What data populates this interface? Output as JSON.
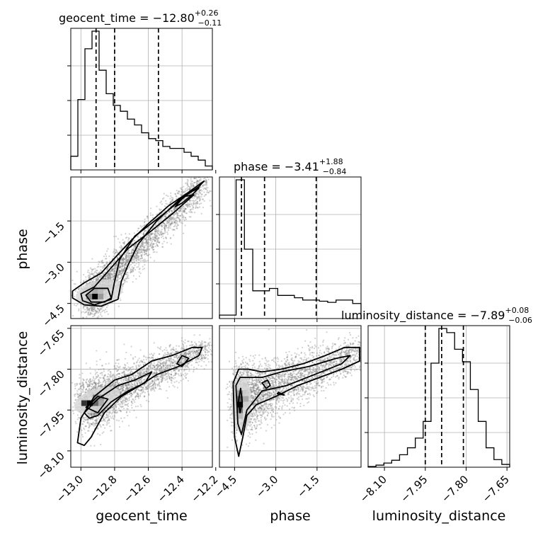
{
  "chart_data": {
    "type": "corner",
    "parameters": [
      "geocent_time",
      "phase",
      "luminosity_distance"
    ],
    "panels": {
      "geocent_time": {
        "title": {
          "prefix": "geocent_time = −12.80",
          "sup": "+0.26",
          "sub": "−0.11"
        },
        "range": [
          -13.06,
          -12.22
        ],
        "ticks": [
          -13.0,
          -12.8,
          -12.6,
          -12.4,
          -12.2
        ],
        "tick_labels": [
          "−13.0",
          "−12.8",
          "−12.6",
          "−12.4",
          "−12.2"
        ],
        "quantiles": [
          -12.91,
          -12.8,
          -12.54
        ],
        "hist": [
          0.07,
          0.36,
          0.62,
          0.71,
          0.51,
          0.39,
          0.33,
          0.3,
          0.26,
          0.23,
          0.19,
          0.16,
          0.15,
          0.12,
          0.11,
          0.11,
          0.09,
          0.07,
          0.05,
          0.02
        ]
      },
      "phase": {
        "title": {
          "prefix": "phase = −3.41",
          "sup": "+1.88",
          "sub": "−0.84"
        },
        "range": [
          -5.05,
          0.1
        ],
        "ticks": [
          -4.5,
          -3.0,
          -1.5
        ],
        "tick_labels": [
          "−4.5",
          "−3.0",
          "−1.5"
        ],
        "quantiles": [
          -4.25,
          -3.41,
          -1.53
        ],
        "hist": [
          0.015,
          0.015,
          0.6,
          0.3,
          0.12,
          0.12,
          0.13,
          0.1,
          0.1,
          0.09,
          0.08,
          0.08,
          0.075,
          0.07,
          0.08,
          0.08,
          0.065
        ]
      },
      "luminosity_distance": {
        "title": {
          "prefix": "luminosity_distance = −7.89",
          "sup": "+0.08",
          "sub": "−0.06"
        },
        "range": [
          -8.16,
          -7.64
        ],
        "ticks": [
          -8.1,
          -7.95,
          -7.8,
          -7.65
        ],
        "tick_labels": [
          "−8.10",
          "−7.95",
          "−7.80",
          "−7.65"
        ],
        "quantiles": [
          -7.95,
          -7.89,
          -7.81
        ],
        "hist": [
          0.005,
          0.015,
          0.03,
          0.05,
          0.09,
          0.14,
          0.21,
          0.33,
          0.75,
          1.0,
          0.97,
          0.85,
          0.76,
          0.56,
          0.33,
          0.14,
          0.055,
          0.02
        ]
      }
    },
    "axis_labels": {
      "geocent_time": "geocent_time",
      "phase": "phase",
      "luminosity_distance": "luminosity_distance"
    },
    "colors": {
      "line": "#000000",
      "grid": "#b0b0b0",
      "scatter": "#7a7a7a"
    }
  }
}
